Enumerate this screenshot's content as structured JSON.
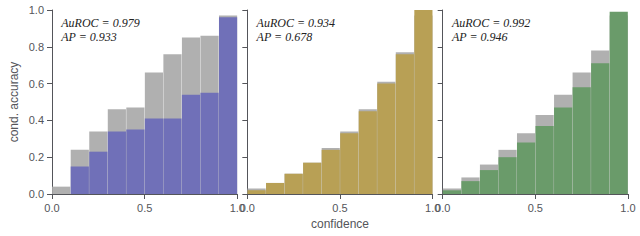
{
  "chart_data": [
    {
      "type": "bar",
      "x": [
        0.05,
        0.15,
        0.25,
        0.35,
        0.45,
        0.55,
        0.65,
        0.75,
        0.85,
        0.95
      ],
      "series": [
        {
          "color": "#b0b0b0",
          "values": [
            0.04,
            0.24,
            0.34,
            0.46,
            0.47,
            0.66,
            0.76,
            0.85,
            0.86,
            0.97
          ]
        },
        {
          "color": "#7070b8",
          "values": [
            0.0,
            0.15,
            0.23,
            0.34,
            0.35,
            0.41,
            0.41,
            0.54,
            0.55,
            0.96
          ]
        }
      ],
      "ylabel": "cond. accuracy",
      "annotations": [
        "AuROC = 0.979",
        "AP = 0.933"
      ],
      "xlim": [
        0.0,
        1.0
      ],
      "ylim": [
        0.0,
        1.0
      ],
      "xticks": [
        {
          "value": 0,
          "label": "0.0"
        },
        {
          "value": 0.5,
          "label": "0.5"
        },
        {
          "value": 1,
          "label": "1.0"
        }
      ],
      "yticks": [
        {
          "value": 0,
          "label": "0.0"
        },
        {
          "value": 0.2,
          "label": "0.2"
        },
        {
          "value": 0.4,
          "label": "0.4"
        },
        {
          "value": 0.6,
          "label": "0.6"
        },
        {
          "value": 0.8,
          "label": "0.8"
        },
        {
          "value": 1,
          "label": "1.0"
        }
      ],
      "grid": false
    },
    {
      "type": "bar",
      "x": [
        0.05,
        0.15,
        0.25,
        0.35,
        0.45,
        0.55,
        0.65,
        0.75,
        0.85,
        0.95
      ],
      "series": [
        {
          "color": "#b0b0b0",
          "values": [
            0.03,
            0.06,
            0.11,
            0.17,
            0.25,
            0.34,
            0.46,
            0.61,
            0.77,
            0.97
          ]
        },
        {
          "color": "#b8a055",
          "values": [
            0.02,
            0.06,
            0.11,
            0.17,
            0.24,
            0.33,
            0.45,
            0.6,
            0.76,
            1.0
          ]
        }
      ],
      "xlabel": "confidence",
      "annotations": [
        "AuROC = 0.934",
        "AP = 0.678"
      ],
      "xlim": [
        0.0,
        1.0
      ],
      "ylim": [
        0.0,
        1.0
      ],
      "xticks": [
        {
          "value": 0,
          "label": "0.0"
        },
        {
          "value": 0.5,
          "label": "0.5"
        },
        {
          "value": 1,
          "label": "1.0"
        }
      ],
      "yticks": [
        0,
        0.2,
        0.4,
        0.6,
        0.8,
        1
      ],
      "tick_labels": "x",
      "grid": false
    },
    {
      "type": "bar",
      "x": [
        0.05,
        0.15,
        0.25,
        0.35,
        0.45,
        0.55,
        0.65,
        0.75,
        0.85,
        0.95
      ],
      "series": [
        {
          "color": "#b0b0b0",
          "values": [
            0.03,
            0.09,
            0.16,
            0.24,
            0.33,
            0.43,
            0.54,
            0.66,
            0.78,
            0.97
          ]
        },
        {
          "color": "#6a9b6a",
          "values": [
            0.02,
            0.07,
            0.13,
            0.2,
            0.28,
            0.37,
            0.47,
            0.58,
            0.71,
            0.99
          ]
        }
      ],
      "annotations": [
        "AuROC = 0.992",
        "AP = 0.946"
      ],
      "xlim": [
        0.0,
        1.0
      ],
      "ylim": [
        0.0,
        1.0
      ],
      "xticks": [
        {
          "value": 0,
          "label": "0.0"
        },
        {
          "value": 0.5,
          "label": "0.5"
        },
        {
          "value": 1,
          "label": "1.0"
        }
      ],
      "yticks": [
        0,
        0.2,
        0.4,
        0.6,
        0.8,
        1
      ],
      "tick_labels": "x",
      "grid": false
    }
  ]
}
